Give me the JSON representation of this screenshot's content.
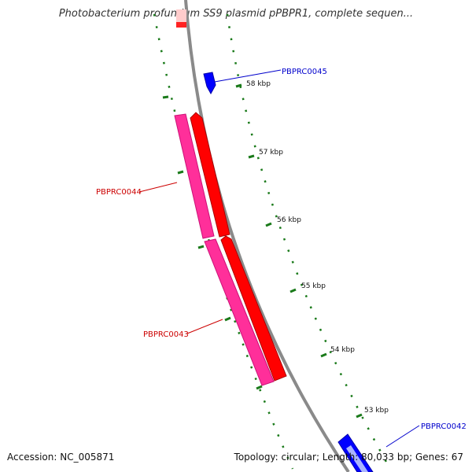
{
  "title": "Photobacterium profundum SS9 plasmid pPBPR1, complete sequen...",
  "accession": "Accession: NC_005871",
  "topology": "Topology: circular; Length: 80,033 bp; Genes: 67",
  "ticks": [
    "58 kbp",
    "57 kbp",
    "56 kbp",
    "55 kbp",
    "54 kbp",
    "53 kbp"
  ],
  "genes": [
    {
      "name": "PBPRC0045",
      "strand": "reverse",
      "color": "#0000ee"
    },
    {
      "name": "PBPRC0044",
      "strand": "forward",
      "color": "#cc0000"
    },
    {
      "name": "PBPRC0043",
      "strand": "forward",
      "color": "#cc0000"
    },
    {
      "name": "PBPRC0042",
      "strand": "reverse",
      "color": "#0000ee"
    }
  ],
  "colors": {
    "forward_cds": "#ff0000",
    "orf": "#ff3399",
    "reverse_cds": "#0000ff",
    "backbone": "#888888",
    "ticks": "#006600"
  }
}
